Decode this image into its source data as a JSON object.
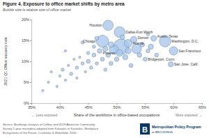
{
  "chart_data": {
    "type": "scatter",
    "title": "Figure 4. Exposure to office market shifts by metro area",
    "subtitle": "Bubble size is relative size of office market",
    "xlabel": "Share of the workforce in office-based occupations",
    "ylabel": "2021 Q1 Office vacancy rate",
    "annotations": [
      "← Less exposed",
      "More exposed →"
    ],
    "source": [
      "Source: Brookings analysis of CoStar and 2019 American Community",
      "Survey 1-year microdata adapted from Katsiakis in Katsiakis, Workplace",
      "Ecosystems of the Future, Cushman & Wakefield, 2020."
    ],
    "credit": {
      "mark": "B",
      "name": "Metropolitan Policy Program",
      "org": "at BROOKINGS"
    },
    "color": "#a8c8ec",
    "grid": false,
    "xlim": [
      35,
      65
    ],
    "ylim": [
      0,
      20
    ],
    "xticks": [
      {
        "value": 35,
        "label": "35%"
      },
      {
        "value": 40,
        "label": "40%"
      },
      {
        "value": 45,
        "label": "45%"
      },
      {
        "value": 50,
        "label": "50%"
      },
      {
        "value": 55,
        "label": "55%"
      },
      {
        "value": 60,
        "label": "60%"
      },
      {
        "value": 65,
        "label": "65%"
      }
    ],
    "yticks": [
      {
        "value": 0,
        "label": "0%"
      },
      {
        "value": 5,
        "label": "5%"
      },
      {
        "value": 10,
        "label": "10%"
      },
      {
        "value": 15,
        "label": "15%"
      },
      {
        "value": 20,
        "label": "20%"
      }
    ],
    "labels": [
      "Houston",
      "Dallas-Fort Worth",
      "Chicago",
      "Denver",
      "Austin, Texas",
      "Atlanta",
      "Washington, D.C.",
      "Phoenix",
      "San Francisco",
      "Bridgeport, Conn.",
      "San Jose, Calif.",
      null,
      null,
      null,
      null,
      null,
      null,
      null,
      null,
      null,
      null,
      null,
      null,
      null,
      null,
      null,
      null,
      null,
      null,
      null,
      null,
      null,
      null,
      null,
      null,
      null,
      null,
      null,
      null,
      null,
      null,
      null,
      null,
      null,
      null,
      null,
      null,
      null,
      null,
      null,
      null,
      null,
      null,
      null,
      null,
      null
    ],
    "x": [
      48.5,
      50.5,
      47.5,
      53.0,
      56.5,
      52.0,
      58.5,
      50.5,
      60.0,
      55.0,
      59.5,
      38.0,
      38.5,
      39.5,
      40.0,
      40.5,
      41.0,
      41.5,
      42.0,
      42.5,
      43.0,
      43.0,
      43.5,
      44.0,
      44.5,
      45.0,
      45.0,
      45.5,
      46.0,
      46.0,
      46.5,
      47.0,
      47.5,
      48.0,
      48.0,
      48.5,
      49.0,
      49.0,
      49.5,
      50.0,
      50.8,
      51.5,
      52.0,
      52.5,
      53.5,
      54.0,
      54.5,
      55.5,
      56.0,
      57.0,
      44.0,
      46.5,
      51.0,
      37.0,
      41.0,
      55.5
    ],
    "values": [
      18.6,
      17.0,
      14.8,
      15.2,
      15.5,
      14.3,
      14.8,
      12.0,
      12.5,
      10.5,
      9.3,
      5.0,
      7.5,
      4.0,
      6.5,
      8.0,
      5.5,
      9.0,
      7.0,
      10.5,
      6.0,
      8.5,
      11.0,
      9.5,
      7.5,
      10.0,
      12.0,
      8.5,
      11.5,
      13.5,
      9.5,
      12.5,
      10.5,
      8.0,
      13.0,
      11.5,
      14.0,
      9.5,
      12.8,
      10.5,
      13.5,
      11.0,
      12.5,
      9.0,
      13.0,
      11.5,
      14.0,
      12.5,
      13.5,
      11.5,
      14.5,
      15.5,
      15.8,
      3.0,
      12.5,
      16.5
    ],
    "sizes": [
      20,
      22,
      28,
      8,
      6,
      12,
      25,
      9,
      14,
      3,
      5,
      1,
      1,
      1,
      1,
      2,
      1,
      1,
      2,
      1,
      1,
      2,
      1,
      2,
      1,
      3,
      2,
      2,
      3,
      2,
      2,
      4,
      3,
      2,
      5,
      4,
      6,
      3,
      16,
      4,
      45,
      5,
      7,
      3,
      18,
      4,
      4,
      3,
      5,
      3,
      2,
      3,
      4,
      1,
      1,
      2
    ]
  }
}
